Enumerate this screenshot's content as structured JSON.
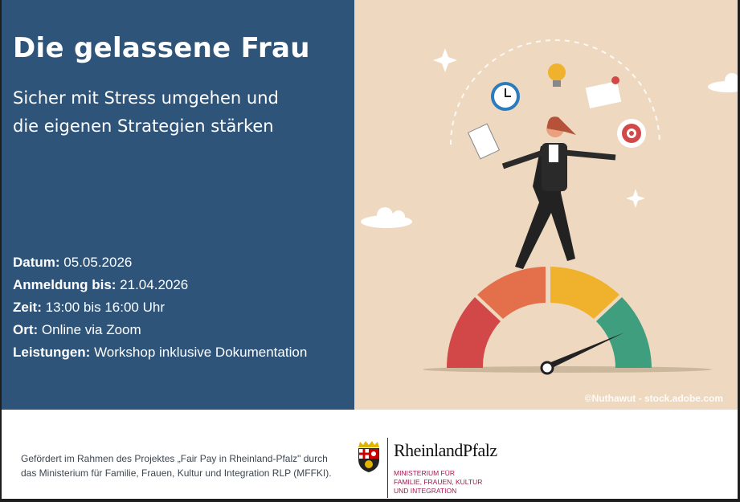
{
  "title": "Die gelassene Frau",
  "subtitle": [
    "Sicher mit Stress umgehen und",
    "die eigenen Strategien stärken"
  ],
  "details": [
    {
      "label": "Datum:",
      "value": " 05.05.2026"
    },
    {
      "label": "Anmeldung bis:",
      "value": " 21.04.2026"
    },
    {
      "label": "Zeit:",
      "value": " 13:00 bis 16:00 Uhr"
    },
    {
      "label": "Ort:",
      "value": " Online via Zoom"
    },
    {
      "label": "Leistungen:",
      "value": " Workshop inklusive Dokumentation"
    }
  ],
  "image_credit": "©Nuthawut - stock.adobe.com",
  "footer": {
    "text": "Gefördert im Rahmen des Projektes „Fair Pay in Rheinland-Pfalz\" durch das Ministerium  für Familie, Frauen, Kultur und Integration RLP (MFFKI).",
    "logo_name": "RheinlandPfalz",
    "ministry": [
      "MINISTERIUM FÜR",
      "FAMILIE, FRAUEN, KULTUR",
      "UND INTEGRATION"
    ]
  },
  "colors": {
    "panel": "#2f5479",
    "illustration_bg": "#eed9c0",
    "gauge": [
      "#d24848",
      "#e3704a",
      "#f0b12c",
      "#3f9e7d"
    ],
    "ministry": "#a2174f"
  }
}
